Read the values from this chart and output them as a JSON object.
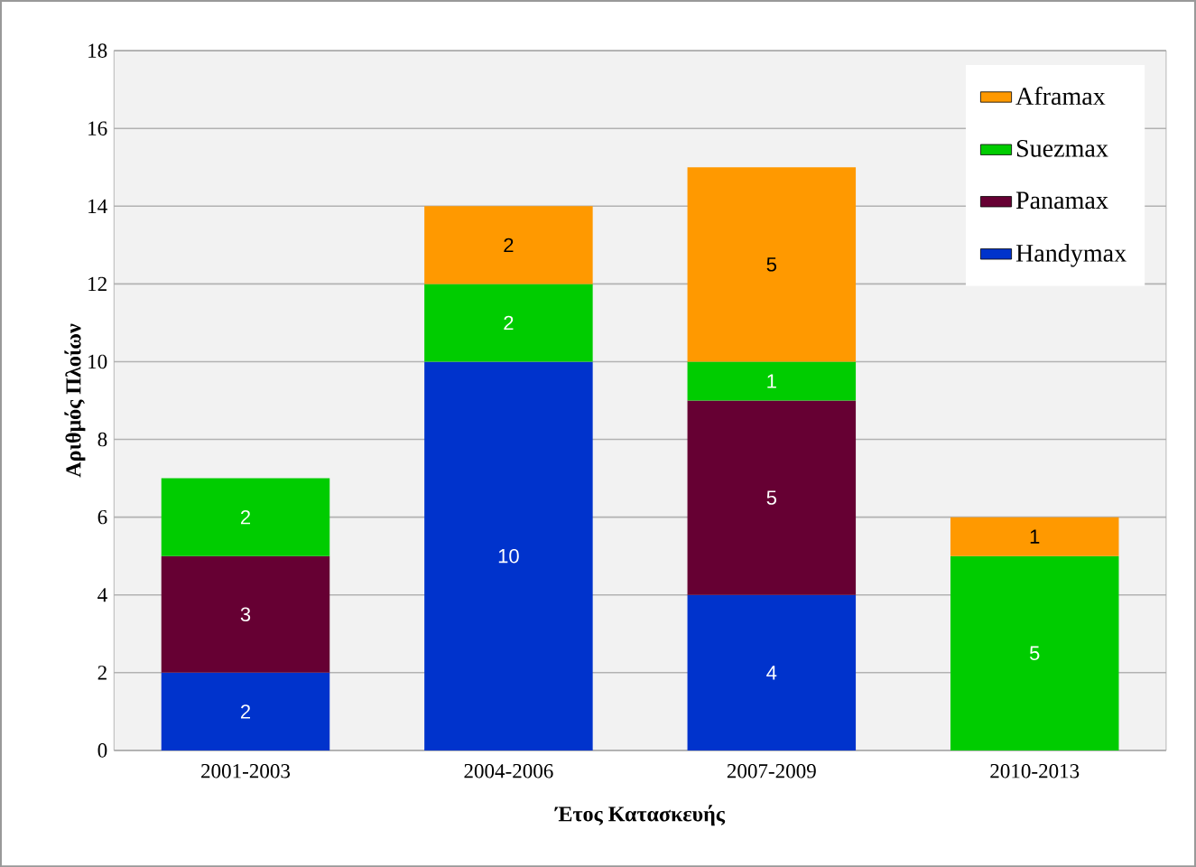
{
  "chart_data": {
    "type": "bar",
    "stacked": true,
    "xlabel": "Έτος Κατασκευής",
    "ylabel": "Αριθμός Πλοίων",
    "categories": [
      "2001-2003",
      "2004-2006",
      "2007-2009",
      "2010-2013"
    ],
    "series": [
      {
        "name": "Handymax",
        "color": "#0033cc",
        "values": [
          2,
          10,
          4,
          null
        ]
      },
      {
        "name": "Panamax",
        "color": "#660033",
        "values": [
          3,
          null,
          5,
          null
        ]
      },
      {
        "name": "Suezmax",
        "color": "#00cc00",
        "values": [
          2,
          2,
          1,
          5
        ]
      },
      {
        "name": "Aframax",
        "color": "#ff9900",
        "values": [
          null,
          2,
          5,
          1
        ]
      }
    ],
    "ylim": [
      0,
      18
    ],
    "yticks": [
      0,
      2,
      4,
      6,
      8,
      10,
      12,
      14,
      16,
      18
    ],
    "grid": "y",
    "legend": "top right",
    "data_labels": true
  }
}
